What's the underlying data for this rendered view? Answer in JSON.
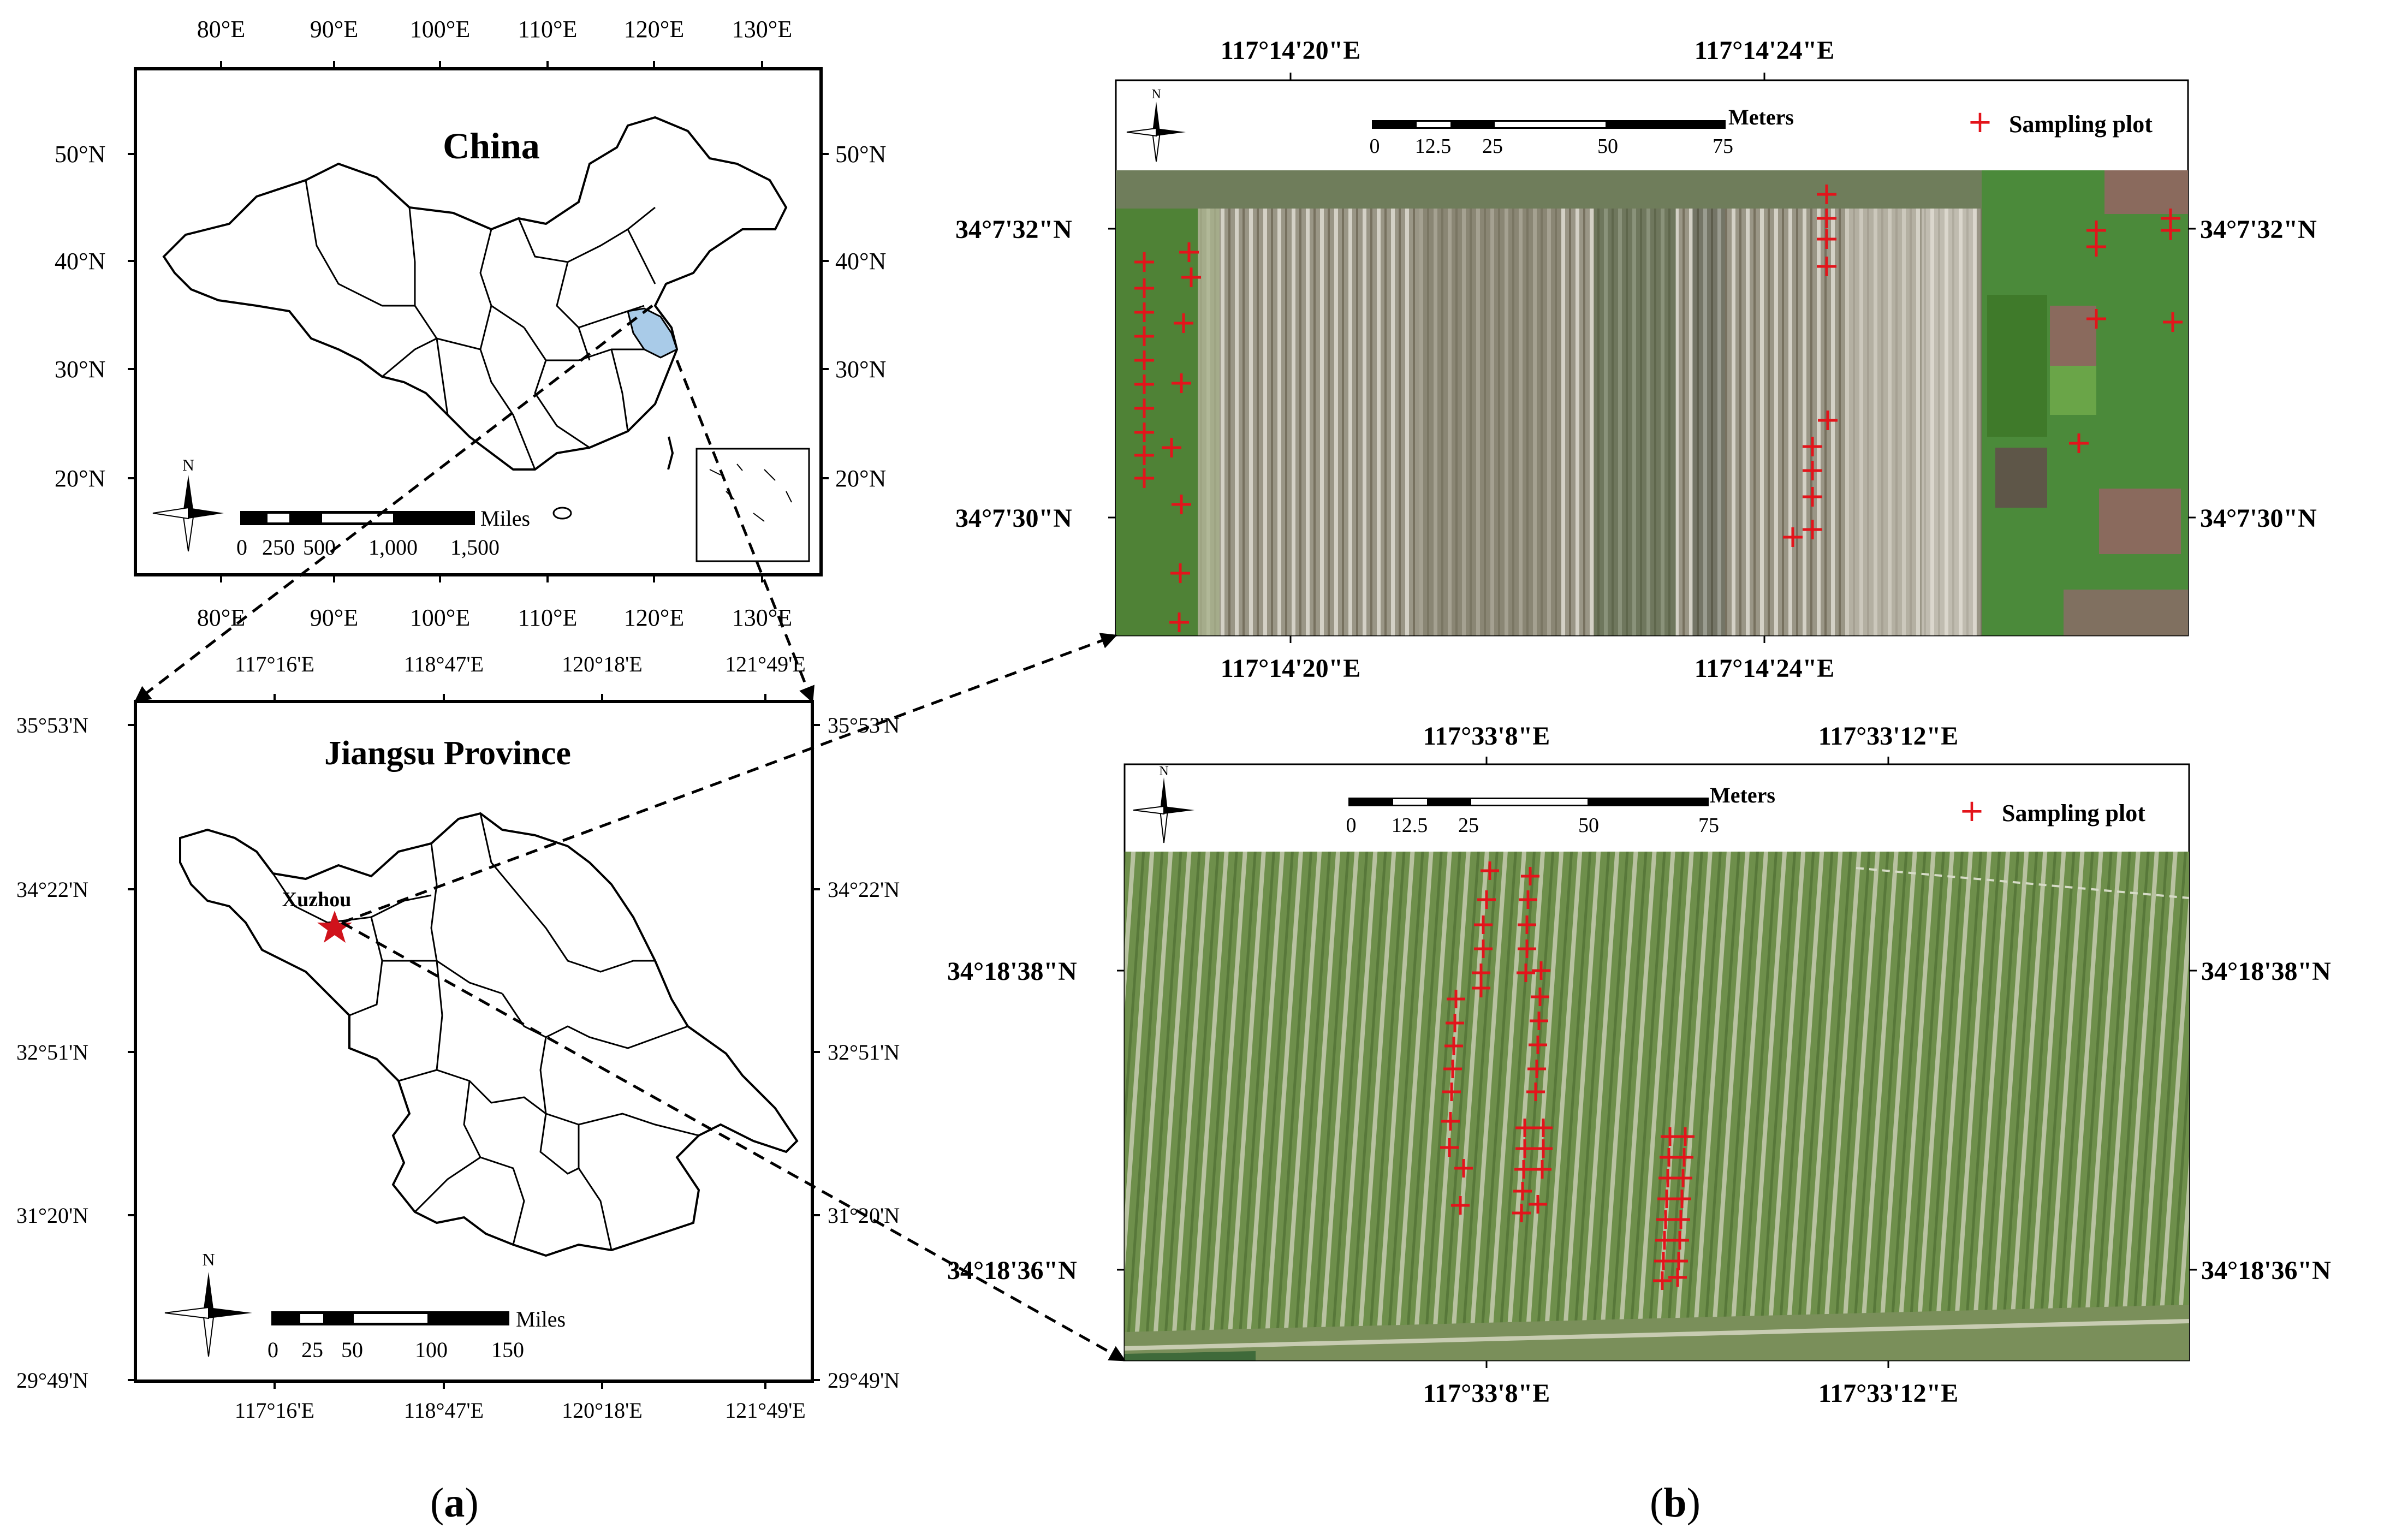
{
  "china_map": {
    "title": "China",
    "lon_ticks": [
      "80°E",
      "90°E",
      "100°E",
      "110°E",
      "120°E",
      "130°E"
    ],
    "lat_ticks": [
      "50°N",
      "40°N",
      "30°N",
      "20°N"
    ],
    "north": "N",
    "scale_unit": "Miles",
    "scale_labels": [
      "0",
      "250",
      "500",
      "1,000",
      "1,500"
    ]
  },
  "jiangsu_map": {
    "title": "Jiangsu Province",
    "lon_ticks": [
      "117°16'E",
      "118°47'E",
      "120°18'E",
      "121°49'E"
    ],
    "lat_ticks": [
      "35°53'N",
      "34°22'N",
      "32°51'N",
      "31°20'N",
      "29°49'N"
    ],
    "city": "Xuzhou",
    "north": "N",
    "scale_unit": "Miles",
    "scale_labels": [
      "0",
      "25",
      "50",
      "100",
      "150"
    ]
  },
  "site_top": {
    "lon_ticks": [
      "117°14'20\"E",
      "117°14'24\"E"
    ],
    "lat_ticks": [
      "34°7'32\"N",
      "34°7'30\"N"
    ],
    "north": "N",
    "scale_unit": "Meters",
    "scale_labels": [
      "0",
      "12.5",
      "25",
      "50",
      "75"
    ],
    "legend": "Sampling plot"
  },
  "site_bottom": {
    "lon_ticks": [
      "117°33'8\"E",
      "117°33'12\"E"
    ],
    "lat_ticks": [
      "34°18'38\"N",
      "34°18'36\"N"
    ],
    "north": "N",
    "scale_unit": "Meters",
    "scale_labels": [
      "0",
      "12.5",
      "25",
      "50",
      "75"
    ],
    "legend": "Sampling plot"
  },
  "captions": {
    "a": "a",
    "b": "b"
  },
  "colors": {
    "sample_marker": "#e3141b",
    "jiangsu_fill": "#a9cbe8",
    "field_top": "#8a8f7c",
    "field_bottom": "#6f8f50"
  }
}
